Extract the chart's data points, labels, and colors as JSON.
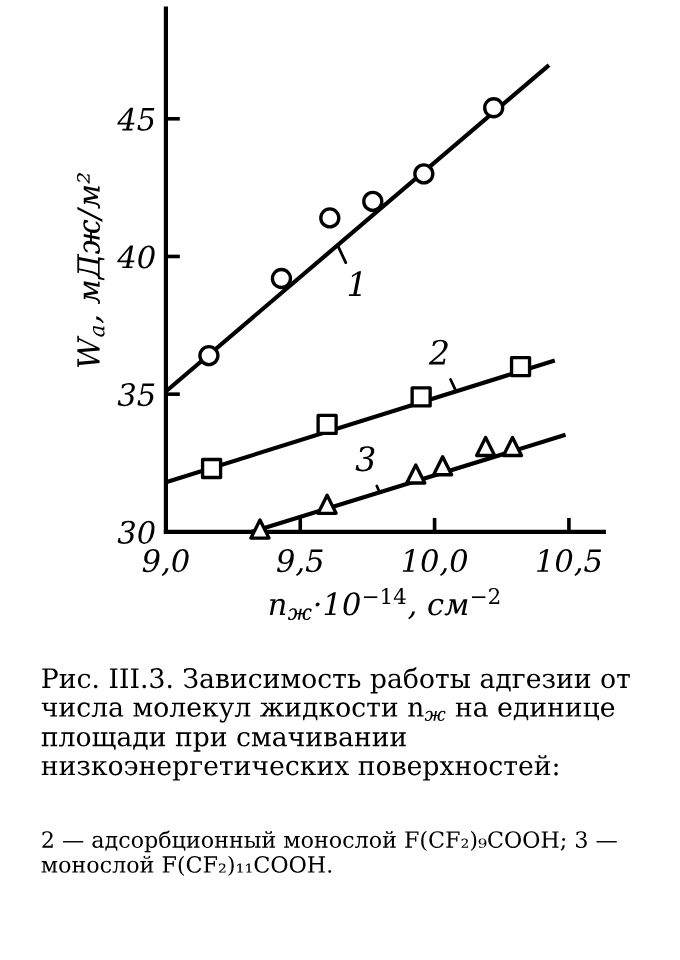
{
  "chart_data": {
    "type": "scatter",
    "xlabel": "n$_{ж}$·10$^{−14}$, см$^{−2}$",
    "ylabel": "W$_{a}$, мДж/м²",
    "xlim": [
      9.0,
      10.63
    ],
    "ylim": [
      30,
      49
    ],
    "xticks": [
      {
        "value": 9.0,
        "label": "9,0"
      },
      {
        "value": 9.5,
        "label": "9,5"
      },
      {
        "value": 10.0,
        "label": "10,0"
      },
      {
        "value": 10.5,
        "label": "10,5"
      }
    ],
    "yticks": [
      30,
      35,
      40,
      45
    ],
    "grid": false,
    "legend": "center",
    "series": [
      {
        "marker": "circle",
        "color": "#000000",
        "x": [
          9.16,
          9.43,
          9.61,
          9.77,
          9.96,
          10.22
        ],
        "values": [
          36.4,
          39.2,
          41.4,
          42.0,
          43.0,
          45.4
        ]
      },
      {
        "type": "line",
        "name": "1",
        "color": "#000000",
        "x": [
          9.0,
          10.42
        ],
        "values": [
          35.1,
          46.9
        ]
      },
      {
        "marker": "square",
        "color": "#000000",
        "x": [
          9.17,
          9.6,
          9.95,
          10.32
        ],
        "values": [
          32.3,
          33.9,
          34.9,
          36.0
        ]
      },
      {
        "type": "line",
        "name": "2",
        "color": "#000000",
        "x": [
          9.0,
          10.44
        ],
        "values": [
          31.8,
          36.2
        ]
      },
      {
        "marker": "triangle",
        "color": "#000000",
        "x": [
          9.35,
          9.6,
          9.93,
          10.03,
          10.19,
          10.29
        ],
        "values": [
          30.1,
          31.0,
          32.1,
          32.4,
          33.1,
          33.1
        ]
      },
      {
        "type": "line",
        "name": "3",
        "color": "#000000",
        "x": [
          9.32,
          10.48
        ],
        "values": [
          30.0,
          33.5
        ]
      }
    ],
    "annotations": [
      "Рис. III.3. Зависимость работы адгезии от числа молекул жидкости n$_{ж}$ на единице площади при смачивании низкоэнергетических поверхностей:",
      "2 — адсорбционный монослой F(CF₂)₉COOH; 3 — монослой F(CF₂)₁₁COOH."
    ]
  }
}
